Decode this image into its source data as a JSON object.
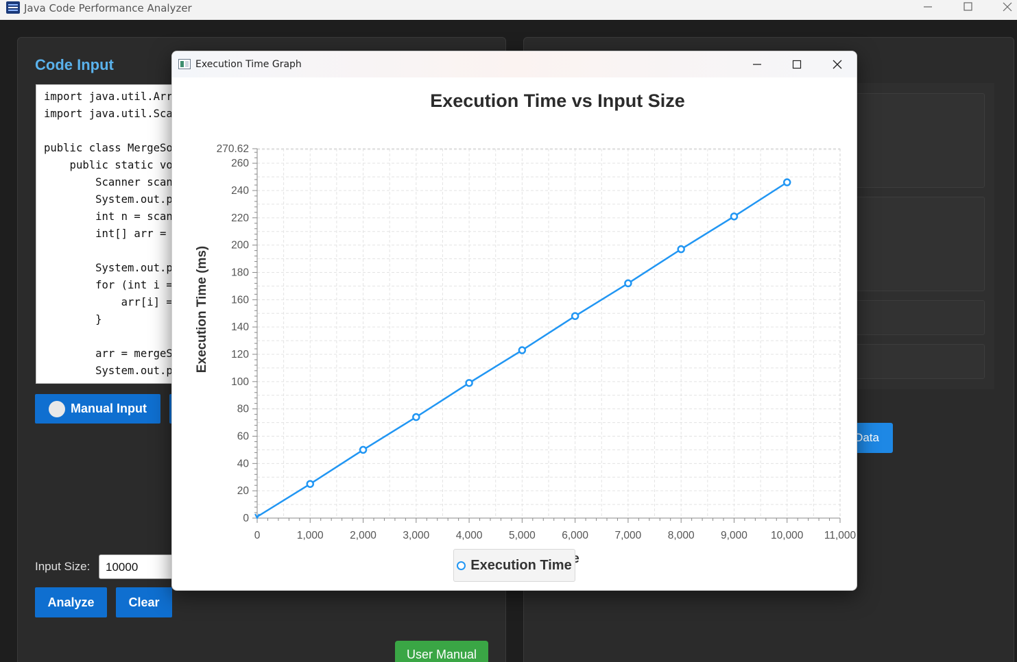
{
  "app": {
    "title": "Java Code Performance Analyzer"
  },
  "left_panel": {
    "code_input_title": "Code Input",
    "code_lines": [
      "import java.util.Arr",
      "import java.util.Sca",
      "",
      "public class MergeSo",
      "    public static vo",
      "        Scanner scan",
      "        System.out.p",
      "        int n = scan",
      "        int[] arr = ",
      "",
      "        System.out.p",
      "        for (int i =",
      "            arr[i] =",
      "        }",
      "",
      "        arr = mergeS",
      "        System.out.p"
    ],
    "manual_input_label": "Manual Input",
    "input_size_label": "Input Size:",
    "input_size_value": "10000",
    "analyze_label": "Analyze",
    "clear_label": "Clear",
    "user_manual_label": "User Manual"
  },
  "right_panel": {
    "data_button_label": "Data"
  },
  "graph_window": {
    "title": "Execution Time Graph"
  },
  "colors": {
    "accent_blue": "#0f6fd0",
    "series_blue": "#2196f3",
    "title_blue": "#5ab2ec",
    "green": "#3aa645"
  },
  "chart_data": {
    "type": "line",
    "title": "Execution Time vs Input Size",
    "xlabel": "Input Size",
    "ylabel": "Execution Time (ms)",
    "xlim": [
      0,
      11000
    ],
    "ylim": [
      0,
      270.62
    ],
    "x_ticks": [
      "0",
      "1,000",
      "2,000",
      "3,000",
      "4,000",
      "5,000",
      "6,000",
      "7,000",
      "8,000",
      "9,000",
      "10,000",
      "11,000"
    ],
    "y_ticks": [
      "0",
      "20",
      "40",
      "60",
      "80",
      "100",
      "120",
      "140",
      "160",
      "180",
      "200",
      "220",
      "240",
      "260",
      "270.62"
    ],
    "grid": true,
    "legend": "bottom-center",
    "series": [
      {
        "name": "Execution Time",
        "x": [
          0,
          1000,
          2000,
          3000,
          4000,
          5000,
          6000,
          7000,
          8000,
          9000,
          10000
        ],
        "y": [
          1,
          25,
          50,
          74,
          99,
          123,
          148,
          172,
          197,
          221,
          246
        ]
      }
    ]
  }
}
